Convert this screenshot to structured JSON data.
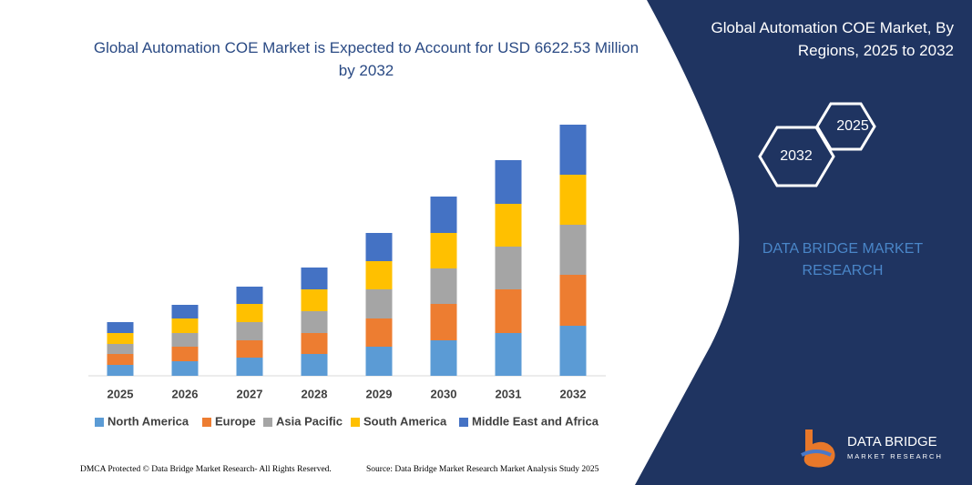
{
  "chart_data": {
    "type": "stacked-bar",
    "title": "Global Automation COE Market is Expected to Account for USD 6622.53 Million by 2032",
    "categories": [
      "2025",
      "2026",
      "2027",
      "2028",
      "2029",
      "2030",
      "2031",
      "2032"
    ],
    "series": [
      {
        "name": "North America",
        "color": "#5b9bd5",
        "values": [
          288,
          384,
          480,
          576,
          768,
          936,
          1128,
          1320
        ]
      },
      {
        "name": "Europe",
        "color": "#ed7d31",
        "values": [
          288,
          384,
          456,
          552,
          744,
          960,
          1152,
          1344
        ]
      },
      {
        "name": "Asia Pacific",
        "color": "#a5a5a5",
        "values": [
          264,
          360,
          480,
          576,
          768,
          936,
          1128,
          1320
        ]
      },
      {
        "name": "South America",
        "color": "#ffc000",
        "values": [
          288,
          384,
          480,
          576,
          744,
          936,
          1128,
          1320
        ]
      },
      {
        "name": "Middle East and Africa",
        "color": "#4472c4",
        "values": [
          288,
          360,
          456,
          576,
          744,
          960,
          1152,
          1320
        ]
      }
    ]
  },
  "panel": {
    "title": "Global Automation COE Market, By Regions, 2025 to 2032",
    "hexagons": [
      "2025",
      "2032"
    ],
    "brand": "DATA BRIDGE MARKET RESEARCH",
    "logo_title": "DATA BRIDGE",
    "logo_subtitle": "MARKET RESEARCH"
  },
  "footer": {
    "left": "DMCA Protected © Data Bridge Market Research- All Rights Reserved.",
    "right": "Source: Data Bridge Market Research Market Analysis Study 2025"
  }
}
